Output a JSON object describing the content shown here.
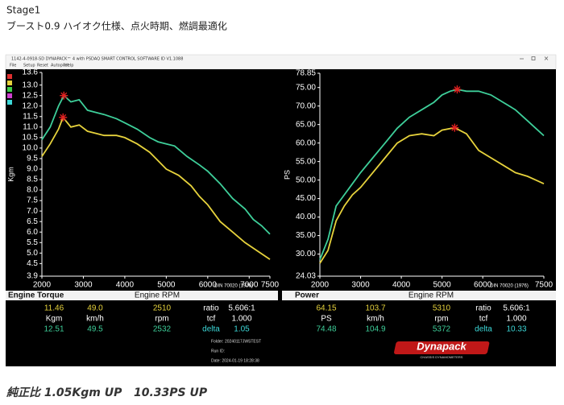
{
  "post": {
    "heading": "Stage1",
    "subheading": "ブースト0.9 ハイオク仕様、点火時期、燃調最適化",
    "footer": "純正比 1.05Kgm UP   10.33PS UP"
  },
  "window": {
    "title": "1142-4-0918-SD DYNAPACK™ 4 with PSDAQ SMART CONTROL SOFTWARE ID V1.1088",
    "menu": [
      "File",
      "Setup",
      "Reset",
      "Autopilot",
      "Help"
    ]
  },
  "chart_data": [
    {
      "type": "line",
      "title": "Engine Torque",
      "x_label": "Engine RPM",
      "y_label": "Kgm",
      "note": "DIN 70020 (1976)",
      "xlim": [
        2000,
        7500
      ],
      "xticks": [
        2000,
        3000,
        4000,
        5000,
        6000,
        7000,
        7500
      ],
      "ylim": [
        3.9,
        13.6
      ],
      "yticks": [
        13.6,
        {
          "value": 13,
          "label": "13.0"
        },
        12.5,
        {
          "value": 12,
          "label": "12.0"
        },
        11.5,
        {
          "value": 11,
          "label": "11.0"
        },
        10.5,
        {
          "value": 10,
          "label": "10.0"
        },
        9.5,
        {
          "value": 9,
          "label": "9.0"
        },
        8.5,
        {
          "value": 8,
          "label": "8.0"
        },
        7.5,
        {
          "value": 7,
          "label": "7.0"
        },
        6.5,
        {
          "value": 6,
          "label": "6.0"
        },
        5.5,
        {
          "value": 5,
          "label": "5.0"
        },
        4.5,
        3.9
      ],
      "series": [
        {
          "color": "#3ecf9a",
          "x": [
            2000,
            2200,
            2400,
            2530,
            2700,
            2900,
            3100,
            3300,
            3500,
            3800,
            4000,
            4300,
            4600,
            4800,
            5000,
            5200,
            5500,
            5800,
            6000,
            6300,
            6600,
            6900,
            7100,
            7300,
            7500
          ],
          "values": [
            10.4,
            11.0,
            12.0,
            12.5,
            12.2,
            12.3,
            11.8,
            11.7,
            11.6,
            11.4,
            11.2,
            10.9,
            10.5,
            10.3,
            10.2,
            10.1,
            9.6,
            9.2,
            8.9,
            8.3,
            7.6,
            7.1,
            6.6,
            6.3,
            5.9
          ]
        },
        {
          "color": "#e6d23c",
          "x": [
            2000,
            2200,
            2400,
            2510,
            2700,
            2900,
            3100,
            3300,
            3500,
            3800,
            4000,
            4300,
            4600,
            4800,
            5000,
            5300,
            5600,
            5800,
            6000,
            6300,
            6600,
            6900,
            7200,
            7500
          ],
          "values": [
            9.6,
            10.2,
            10.9,
            11.46,
            11.0,
            11.1,
            10.8,
            10.7,
            10.6,
            10.6,
            10.5,
            10.2,
            9.8,
            9.4,
            9.0,
            8.7,
            8.2,
            7.7,
            7.3,
            6.5,
            6.0,
            5.5,
            5.1,
            4.7
          ]
        }
      ]
    },
    {
      "type": "line",
      "title": "Power",
      "x_label": "Engine RPM",
      "y_label": "PS",
      "note": "DIN 70020 (1976)",
      "xlim": [
        2000,
        7500
      ],
      "xticks": [
        2000,
        3000,
        4000,
        5000,
        6000,
        7500
      ],
      "ylim": [
        24.03,
        78.85
      ],
      "yticks": [
        78.85,
        {
          "value": 75,
          "label": "75.00"
        },
        {
          "value": 70,
          "label": "70.00"
        },
        {
          "value": 65,
          "label": "65.00"
        },
        {
          "value": 60,
          "label": "60.00"
        },
        {
          "value": 55,
          "label": "55.00"
        },
        {
          "value": 50,
          "label": "50.00"
        },
        {
          "value": 45,
          "label": "45.00"
        },
        {
          "value": 40,
          "label": "40.00"
        },
        {
          "value": 35,
          "label": "35.00"
        },
        {
          "value": 30,
          "label": "30.00"
        },
        24.03
      ],
      "series": [
        {
          "color": "#3ecf9a",
          "x": [
            2000,
            2200,
            2400,
            2600,
            2800,
            3000,
            3300,
            3600,
            3900,
            4200,
            4500,
            4800,
            5000,
            5200,
            5372,
            5600,
            5900,
            6200,
            6500,
            6800,
            7100,
            7300,
            7500
          ],
          "values": [
            28.5,
            34,
            43,
            46,
            49,
            52,
            56,
            60,
            64,
            67,
            69,
            71,
            73,
            74,
            74.48,
            74,
            74,
            73,
            71,
            69,
            66,
            64,
            62
          ]
        },
        {
          "color": "#e6d23c",
          "x": [
            2000,
            2200,
            2400,
            2600,
            2800,
            3000,
            3300,
            3600,
            3900,
            4200,
            4500,
            4800,
            5000,
            5310,
            5600,
            5900,
            6200,
            6500,
            6800,
            7100,
            7300,
            7500
          ],
          "values": [
            27.5,
            31,
            39,
            43,
            46,
            48,
            52,
            56,
            60,
            62,
            62.5,
            62,
            63.5,
            64.15,
            62.5,
            58,
            56,
            54,
            52,
            51,
            50,
            49
          ]
        }
      ]
    }
  ],
  "readouts": [
    [
      [
        "11.46",
        "49.0",
        "2510",
        "ratio",
        "5.606:1"
      ],
      [
        "Kgm",
        "km/h",
        "rpm",
        "tcf",
        "1.000"
      ],
      [
        "12.51",
        "49.5",
        "2532",
        "delta",
        "1.05"
      ]
    ],
    [
      [
        "64.15",
        "103.7",
        "5310",
        "ratio",
        "5.606:1"
      ],
      [
        "PS",
        "km/h",
        "rpm",
        "tcf",
        "1.000"
      ],
      [
        "74.48",
        "104.9",
        "5372",
        "delta",
        "10.33"
      ]
    ]
  ],
  "run_info": [
    "Folder: 20240117JWSTEST",
    "Run ID:",
    "Date: 2024-01-19 18:28:38"
  ],
  "logo": {
    "brand": "Dynapack",
    "tagline": "CHASSIS DYNAMOMETERS"
  }
}
